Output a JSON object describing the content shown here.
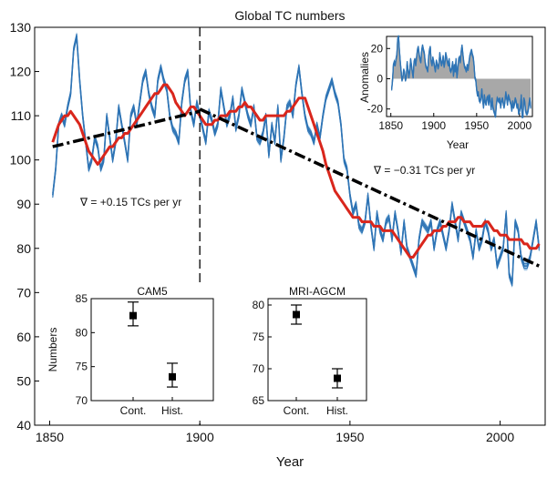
{
  "colors": {
    "series_blue": "#2e74b5",
    "band_blue": "#8fbde0",
    "running_mean_red": "#d9261c",
    "trend_black": "#000000",
    "anomaly_fill_gray": "#a8a8a8"
  },
  "chart_data": [
    {
      "id": "main",
      "type": "line",
      "title": "Global TC numbers",
      "xlabel": "Year",
      "ylabel": "",
      "xlim": [
        1845,
        2015
      ],
      "ylim": [
        40,
        130
      ],
      "xticks": [
        1850,
        1900,
        1950,
        2000
      ],
      "yticks": [
        40,
        50,
        60,
        70,
        80,
        90,
        100,
        110,
        120,
        130
      ],
      "vline_year": 1900,
      "annotations": [
        {
          "text": "∇ = +0.15 TCs per yr",
          "at": [
            1855,
            89
          ]
        },
        {
          "text": "∇ = −0.31 TCs per yr",
          "at": [
            1957,
            99
          ]
        }
      ],
      "series": [
        {
          "role": "annual",
          "x_start": 1851,
          "values": [
            92,
            98,
            108,
            110,
            108,
            112,
            115,
            125,
            128,
            118,
            110,
            104,
            98,
            100,
            105,
            103,
            98,
            100,
            110,
            105,
            100,
            104,
            112,
            108,
            104,
            100,
            110,
            112,
            108,
            113,
            118,
            120,
            115,
            112,
            110,
            118,
            121,
            118,
            116,
            110,
            107,
            106,
            104,
            113,
            118,
            120,
            111,
            108,
            113,
            110,
            107,
            104,
            111,
            109,
            106,
            108,
            116,
            112,
            108,
            110,
            114,
            107,
            110,
            116,
            113,
            110,
            108,
            112,
            105,
            104,
            106,
            110,
            101,
            108,
            104,
            112,
            100,
            105,
            112,
            113,
            110,
            117,
            121,
            115,
            110,
            107,
            106,
            104,
            108,
            105,
            110,
            114,
            116,
            118,
            115,
            113,
            108,
            100,
            98,
            92,
            88,
            90,
            85,
            84,
            86,
            92,
            85,
            80,
            88,
            84,
            82,
            86,
            87,
            82,
            88,
            84,
            79,
            86,
            80,
            78,
            76,
            74,
            82,
            86,
            85,
            84,
            86,
            80,
            84,
            86,
            83,
            80,
            84,
            90,
            86,
            82,
            88,
            86,
            84,
            82,
            78,
            84,
            80,
            82,
            86,
            84,
            80,
            82,
            76,
            78,
            80,
            88,
            74,
            72,
            86,
            84,
            78,
            76,
            76,
            78,
            82,
            86,
            80
          ]
        },
        {
          "role": "running_mean",
          "x_start": 1851,
          "values": [
            104,
            106,
            108,
            109,
            110,
            110,
            111,
            110,
            109,
            108,
            106,
            104,
            102,
            101,
            100,
            99,
            100,
            101,
            102,
            103,
            103,
            104,
            105,
            105,
            106,
            106,
            107,
            108,
            109,
            110,
            111,
            112,
            113,
            114,
            115,
            115,
            116,
            117,
            117,
            116,
            115,
            113,
            112,
            111,
            110,
            111,
            112,
            112,
            111,
            110,
            109,
            108,
            108,
            108,
            109,
            109,
            110,
            110,
            110,
            111,
            111,
            111,
            112,
            112,
            113,
            112,
            112,
            111,
            110,
            109,
            109,
            110,
            110,
            110,
            110,
            110,
            110,
            110,
            111,
            111,
            112,
            113,
            114,
            114,
            114,
            112,
            110,
            108,
            106,
            104,
            102,
            99,
            97,
            95,
            93,
            92,
            91,
            90,
            89,
            88,
            87,
            87,
            87,
            86,
            86,
            86,
            86,
            85,
            85,
            85,
            84,
            84,
            84,
            84,
            83,
            82,
            81,
            80,
            79,
            78,
            78,
            79,
            80,
            81,
            82,
            83,
            83,
            84,
            84,
            84,
            85,
            85,
            86,
            86,
            86,
            87,
            87,
            86,
            86,
            86,
            85,
            85,
            85,
            85,
            86,
            86,
            85,
            84,
            84,
            83,
            83,
            83,
            82,
            82,
            82,
            82,
            82,
            81,
            81,
            80,
            80,
            80,
            81
          ]
        },
        {
          "role": "trend",
          "segments": [
            {
              "x": [
                1851,
                1900
              ],
              "y": [
                103.0,
                111.0
              ]
            },
            {
              "x": [
                1900,
                2013
              ],
              "y": [
                111.5,
                76.0
              ]
            }
          ]
        }
      ]
    },
    {
      "id": "inset-anomalies",
      "type": "area",
      "title": "",
      "xlabel": "Year",
      "ylabel": "Anomalies",
      "xlim": [
        1845,
        2015
      ],
      "ylim": [
        -25,
        28
      ],
      "xticks": [
        1850,
        1900,
        1950,
        2000
      ],
      "yticks": [
        -20,
        0,
        20
      ]
    },
    {
      "id": "inset-cam5",
      "type": "scatter",
      "title": "CAM5",
      "ylabel": "Numbers",
      "categories": [
        "Cont.",
        "Hist."
      ],
      "values": [
        82.5,
        73.5
      ],
      "error_low": [
        81.0,
        72.0
      ],
      "error_high": [
        84.5,
        75.5
      ],
      "ylim": [
        70,
        85
      ],
      "yticks": [
        70,
        75,
        80,
        85
      ]
    },
    {
      "id": "inset-mri",
      "type": "scatter",
      "title": "MRI-AGCM",
      "ylabel": "",
      "categories": [
        "Cont.",
        "Hist."
      ],
      "values": [
        78.5,
        68.5
      ],
      "error_low": [
        77.0,
        67.0
      ],
      "error_high": [
        80.0,
        70.0
      ],
      "ylim": [
        65,
        81
      ],
      "yticks": [
        65,
        70,
        75,
        80
      ]
    }
  ]
}
